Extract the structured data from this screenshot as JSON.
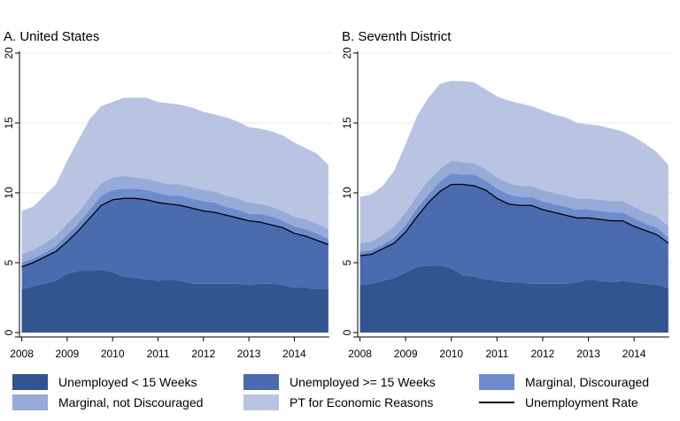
{
  "colors": {
    "short": "#32548f",
    "long": "#4a6bad",
    "discouraged": "#6e8ccc",
    "not_discouraged": "#97aad8",
    "pt": "#b9c4e2",
    "rate_line": "#000000",
    "grid": "#eaeaea",
    "axis": "#000000"
  },
  "chart_data": [
    {
      "type": "area",
      "title": "A. United States",
      "x": [
        2008.0,
        2008.25,
        2008.5,
        2008.75,
        2009.0,
        2009.25,
        2009.5,
        2009.75,
        2010.0,
        2010.25,
        2010.5,
        2010.75,
        2011.0,
        2011.25,
        2011.5,
        2011.75,
        2012.0,
        2012.25,
        2012.5,
        2012.75,
        2013.0,
        2013.25,
        2013.5,
        2013.75,
        2014.0,
        2014.25,
        2014.5,
        2014.75
      ],
      "series": [
        {
          "name": "Unemployed < 15 Weeks",
          "values": [
            3.1,
            3.3,
            3.5,
            3.7,
            4.2,
            4.4,
            4.4,
            4.5,
            4.3,
            4.0,
            3.9,
            3.8,
            3.7,
            3.8,
            3.7,
            3.5,
            3.5,
            3.5,
            3.5,
            3.5,
            3.4,
            3.5,
            3.5,
            3.4,
            3.2,
            3.2,
            3.1,
            3.1
          ]
        },
        {
          "name": "Unemployed >= 15 Weeks",
          "values": [
            1.6,
            1.7,
            1.9,
            2.1,
            2.3,
            2.9,
            3.8,
            4.6,
            5.2,
            5.6,
            5.7,
            5.7,
            5.6,
            5.4,
            5.4,
            5.4,
            5.2,
            5.1,
            4.9,
            4.7,
            4.6,
            4.4,
            4.2,
            4.1,
            3.9,
            3.7,
            3.5,
            3.2
          ]
        },
        {
          "name": "Marginal, Discouraged",
          "values": [
            0.3,
            0.3,
            0.3,
            0.4,
            0.5,
            0.5,
            0.6,
            0.7,
            0.7,
            0.7,
            0.7,
            0.7,
            0.7,
            0.6,
            0.7,
            0.7,
            0.7,
            0.7,
            0.6,
            0.6,
            0.5,
            0.6,
            0.6,
            0.5,
            0.5,
            0.5,
            0.5,
            0.4
          ]
        },
        {
          "name": "Marginal, not Discouraged",
          "values": [
            0.6,
            0.6,
            0.7,
            0.7,
            0.8,
            0.8,
            0.9,
            0.9,
            0.9,
            0.9,
            0.8,
            0.8,
            0.8,
            0.8,
            0.8,
            0.8,
            0.8,
            0.8,
            0.8,
            0.8,
            0.8,
            0.7,
            0.7,
            0.7,
            0.7,
            0.7,
            0.7,
            0.7
          ]
        },
        {
          "name": "PT for Economic Reasons",
          "values": [
            3.1,
            3.1,
            3.4,
            3.7,
            4.5,
            5.2,
            5.6,
            5.5,
            5.4,
            5.6,
            5.7,
            5.8,
            5.7,
            5.8,
            5.7,
            5.7,
            5.6,
            5.5,
            5.6,
            5.5,
            5.4,
            5.4,
            5.4,
            5.4,
            5.3,
            5.1,
            5.0,
            4.6
          ]
        }
      ],
      "line": {
        "name": "Unemployment Rate",
        "values": [
          4.7,
          5.0,
          5.4,
          5.8,
          6.5,
          7.3,
          8.2,
          9.1,
          9.5,
          9.6,
          9.6,
          9.5,
          9.3,
          9.2,
          9.1,
          8.9,
          8.7,
          8.6,
          8.4,
          8.2,
          8.0,
          7.9,
          7.7,
          7.5,
          7.1,
          6.9,
          6.6,
          6.3
        ]
      },
      "xlim": [
        2007.95,
        2014.85
      ],
      "ylim": [
        0,
        20
      ],
      "xticks": [
        "2008",
        "2009",
        "2010",
        "2011",
        "2012",
        "2013",
        "2014"
      ],
      "yticks": [
        "0",
        "5",
        "10",
        "15",
        "20"
      ],
      "grid": true
    },
    {
      "type": "area",
      "title": "B. Seventh District",
      "x": [
        2008.0,
        2008.25,
        2008.5,
        2008.75,
        2009.0,
        2009.25,
        2009.5,
        2009.75,
        2010.0,
        2010.25,
        2010.5,
        2010.75,
        2011.0,
        2011.25,
        2011.5,
        2011.75,
        2012.0,
        2012.25,
        2012.5,
        2012.75,
        2013.0,
        2013.25,
        2013.5,
        2013.75,
        2014.0,
        2014.25,
        2014.5,
        2014.75
      ],
      "series": [
        {
          "name": "Unemployed < 15 Weeks",
          "values": [
            3.4,
            3.5,
            3.7,
            3.9,
            4.3,
            4.7,
            4.8,
            4.8,
            4.6,
            4.1,
            4.0,
            3.8,
            3.7,
            3.6,
            3.6,
            3.5,
            3.5,
            3.5,
            3.5,
            3.6,
            3.8,
            3.7,
            3.6,
            3.7,
            3.6,
            3.5,
            3.4,
            3.2
          ]
        },
        {
          "name": "Unemployed >= 15 Weeks",
          "values": [
            2.1,
            2.1,
            2.3,
            2.5,
            2.9,
            3.6,
            4.5,
            5.3,
            6.0,
            6.5,
            6.5,
            6.4,
            5.9,
            5.6,
            5.5,
            5.6,
            5.3,
            5.1,
            4.9,
            4.6,
            4.4,
            4.4,
            4.4,
            4.3,
            4.0,
            3.8,
            3.6,
            3.2
          ]
        },
        {
          "name": "Marginal, Discouraged",
          "values": [
            0.3,
            0.3,
            0.3,
            0.4,
            0.5,
            0.6,
            0.6,
            0.7,
            0.8,
            0.7,
            0.8,
            0.7,
            0.7,
            0.7,
            0.6,
            0.6,
            0.6,
            0.6,
            0.6,
            0.6,
            0.6,
            0.6,
            0.6,
            0.6,
            0.6,
            0.5,
            0.5,
            0.4
          ]
        },
        {
          "name": "Marginal, not Discouraged",
          "values": [
            0.6,
            0.6,
            0.7,
            0.8,
            0.9,
            0.9,
            1.0,
            0.9,
            0.9,
            0.9,
            0.8,
            0.8,
            0.8,
            0.8,
            0.8,
            0.8,
            0.8,
            0.8,
            0.8,
            0.8,
            0.8,
            0.8,
            0.8,
            0.8,
            0.8,
            0.8,
            0.8,
            0.8
          ]
        },
        {
          "name": "PT for Economic Reasons",
          "values": [
            3.3,
            3.4,
            3.5,
            4.0,
            4.9,
            5.7,
            5.9,
            6.1,
            5.7,
            5.8,
            5.8,
            5.7,
            5.8,
            5.9,
            5.9,
            5.7,
            5.7,
            5.6,
            5.6,
            5.4,
            5.3,
            5.3,
            5.2,
            5.0,
            5.0,
            4.9,
            4.6,
            4.4
          ]
        }
      ],
      "line": {
        "name": "Unemployment Rate",
        "values": [
          5.5,
          5.6,
          6.0,
          6.4,
          7.2,
          8.3,
          9.3,
          10.1,
          10.6,
          10.6,
          10.5,
          10.2,
          9.6,
          9.2,
          9.1,
          9.1,
          8.8,
          8.6,
          8.4,
          8.2,
          8.2,
          8.1,
          8.0,
          8.0,
          7.6,
          7.3,
          7.0,
          6.4
        ]
      },
      "xlim": [
        2007.95,
        2014.85
      ],
      "ylim": [
        0,
        20
      ],
      "xticks": [
        "2008",
        "2009",
        "2010",
        "2011",
        "2012",
        "2013",
        "2014"
      ],
      "yticks": [
        "0",
        "5",
        "10",
        "15",
        "20"
      ],
      "grid": true
    }
  ],
  "legend": {
    "placement": "bottom",
    "items": [
      {
        "label": "Unemployed < 15 Weeks",
        "color_key": "short",
        "kind": "swatch"
      },
      {
        "label": "Unemployed >= 15 Weeks",
        "color_key": "long",
        "kind": "swatch"
      },
      {
        "label": "Marginal, Discouraged",
        "color_key": "discouraged",
        "kind": "swatch"
      },
      {
        "label": "Marginal, not Discouraged",
        "color_key": "not_discouraged",
        "kind": "swatch"
      },
      {
        "label": "PT for Economic Reasons",
        "color_key": "pt",
        "kind": "swatch"
      },
      {
        "label": "Unemployment Rate",
        "color_key": "rate_line",
        "kind": "line"
      }
    ]
  }
}
